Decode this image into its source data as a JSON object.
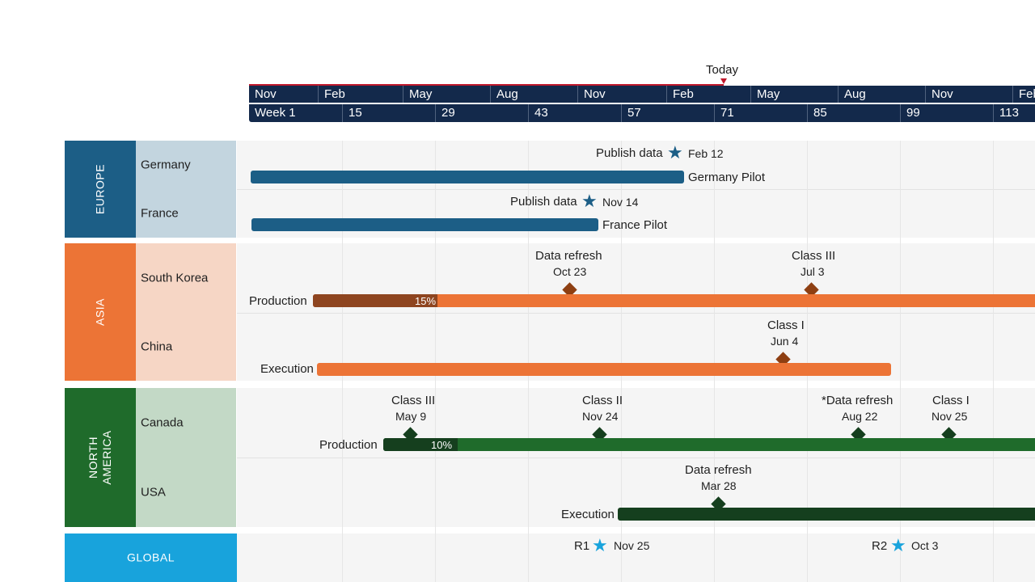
{
  "header": {
    "today_label": "Today",
    "months": [
      "Nov",
      "Feb",
      "May",
      "Aug",
      "Nov",
      "Feb",
      "May",
      "Aug",
      "Nov",
      "Feb"
    ],
    "weeks": [
      "Week 1",
      "15",
      "29",
      "43",
      "57",
      "71",
      "85",
      "99",
      "113"
    ]
  },
  "colors": {
    "header_bg": "#13294b",
    "today": "#c0182c",
    "europe": "#1c5e86",
    "europe_light": "#c3d5df",
    "asia": "#ec7436",
    "asia_light": "#f6d6c5",
    "asia_progress": "#8e4520",
    "asia_diamond": "#8e3f12",
    "na": "#1f6b2b",
    "na_light": "#c3d9c6",
    "na_dark": "#153f1e",
    "global": "#18a3dc"
  },
  "regions": {
    "europe": {
      "label": "EUROPE",
      "countries": [
        "Germany",
        "France"
      ],
      "germany": {
        "milestone_title": "Publish data",
        "milestone_date": "Feb 12",
        "milestone_icon": "star-icon",
        "bar_label": "Germany Pilot"
      },
      "france": {
        "milestone_title": "Publish data",
        "milestone_date": "Nov 14",
        "milestone_icon": "star-icon",
        "bar_label": "France Pilot"
      }
    },
    "asia": {
      "label": "ASIA",
      "countries": [
        "South Korea",
        "China"
      ],
      "south_korea": {
        "bar_label": "Production",
        "progress": "15%",
        "progress_value": 0.15,
        "milestones": [
          {
            "title": "Data refresh",
            "date": "Oct 23"
          },
          {
            "title": "Class III",
            "date": "Jul 3"
          }
        ]
      },
      "china": {
        "bar_label": "Execution",
        "milestones": [
          {
            "title": "Class I",
            "date": "Jun 4"
          }
        ]
      }
    },
    "north_america": {
      "label_line1": "NORTH",
      "label_line2": "AMERICA",
      "countries": [
        "Canada",
        "USA"
      ],
      "canada": {
        "bar_label": "Production",
        "progress": "10%",
        "progress_value": 0.1,
        "milestones": [
          {
            "title": "Class III",
            "date": "May 9"
          },
          {
            "title": "Class II",
            "date": "Nov 24"
          },
          {
            "title": "*Data refresh",
            "date": "Aug 22"
          },
          {
            "title": "Class I",
            "date": "Nov 25"
          }
        ]
      },
      "usa": {
        "bar_label": "Execution",
        "milestones": [
          {
            "title": "Data refresh",
            "date": "Mar 28"
          }
        ]
      }
    },
    "global": {
      "label": "GLOBAL",
      "milestones": [
        {
          "title": "R1",
          "date": "Nov 25",
          "icon": "star-icon"
        },
        {
          "title": "R2",
          "date": "Oct 3",
          "icon": "star-icon"
        }
      ]
    }
  }
}
